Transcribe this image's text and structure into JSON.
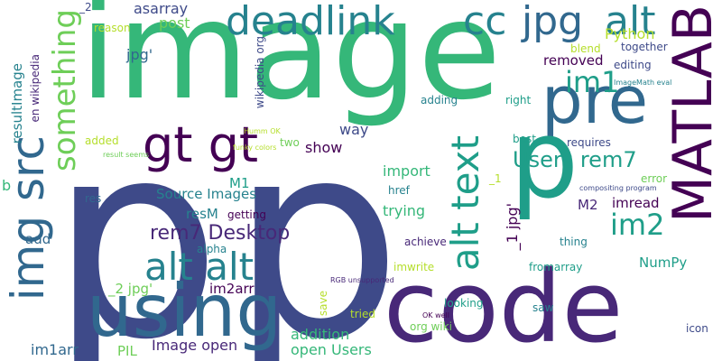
{
  "palette": {
    "purple_dark": "#440154",
    "purple": "#482878",
    "indigo": "#3e4a89",
    "blue": "#31688e",
    "teal": "#26828e",
    "green_teal": "#1f9e89",
    "green": "#35b779",
    "lime": "#6ece58",
    "yellow_green": "#b5de2b"
  },
  "words": [
    {
      "text": "image",
      "color": "#35b779"
    },
    {
      "text": "p",
      "color": "#3e4a89"
    },
    {
      "text": "p",
      "color": "#3e4a89"
    },
    {
      "text": "code",
      "color": "#482878"
    },
    {
      "text": "MATLAB",
      "color": "#440154"
    },
    {
      "text": "using",
      "color": "#31688e"
    },
    {
      "text": "pre",
      "color": "#31688e"
    },
    {
      "text": "p",
      "color": "#1f9e89"
    },
    {
      "text": "deadlink",
      "color": "#26828e"
    },
    {
      "text": "cc",
      "color": "#26828e"
    },
    {
      "text": "jpg",
      "color": "#31688e"
    },
    {
      "text": "alt",
      "color": "#26828e"
    },
    {
      "text": "gt gt",
      "color": "#440154"
    },
    {
      "text": "img src",
      "color": "#31688e"
    },
    {
      "text": "alt alt",
      "color": "#26828e"
    },
    {
      "text": "alt text",
      "color": "#1f9e89"
    },
    {
      "text": "something",
      "color": "#6ece58"
    },
    {
      "text": "im1",
      "color": "#1f9e89"
    },
    {
      "text": "im2",
      "color": "#1f9e89"
    },
    {
      "text": "Users rem7",
      "color": "#1f9e89"
    },
    {
      "text": "rem7 Desktop",
      "color": "#482878"
    },
    {
      "text": "Source Images",
      "color": "#26828e"
    },
    {
      "text": "resultImage",
      "color": "#26828e"
    },
    {
      "text": "en wikipedia",
      "color": "#482878"
    },
    {
      "text": "wikipedia org",
      "color": "#3e4a89"
    },
    {
      "text": "asarray",
      "color": "#3e4a89"
    },
    {
      "text": "post",
      "color": "#6ece58"
    },
    {
      "text": "jpg'",
      "color": "#31688e"
    },
    {
      "text": "reason",
      "color": "#b5de2b"
    },
    {
      "text": "_2",
      "color": "#3e4a89"
    },
    {
      "text": "Python",
      "color": "#b5de2b"
    },
    {
      "text": "blend",
      "color": "#b5de2b"
    },
    {
      "text": "together",
      "color": "#3e4a89"
    },
    {
      "text": "removed",
      "color": "#440154"
    },
    {
      "text": "editing",
      "color": "#3e4a89"
    },
    {
      "text": "ImageMath eval",
      "color": "#26828e"
    },
    {
      "text": "way",
      "color": "#3e4a89"
    },
    {
      "text": "show",
      "color": "#440154"
    },
    {
      "text": "two",
      "color": "#6ece58"
    },
    {
      "text": "Humm OK",
      "color": "#b5de2b"
    },
    {
      "text": "result seems",
      "color": "#6ece58"
    },
    {
      "text": "funky colors",
      "color": "#b5de2b"
    },
    {
      "text": "adding",
      "color": "#26828e"
    },
    {
      "text": "right",
      "color": "#1f9e89"
    },
    {
      "text": "best",
      "color": "#1f9e89"
    },
    {
      "text": "requires",
      "color": "#3e4a89"
    },
    {
      "text": "import",
      "color": "#35b779"
    },
    {
      "text": "added",
      "color": "#b5de2b"
    },
    {
      "text": "_1",
      "color": "#b5de2b"
    },
    {
      "text": "error",
      "color": "#6ece58"
    },
    {
      "text": "compositing program",
      "color": "#3e4a89"
    },
    {
      "text": "b",
      "color": "#35b779"
    },
    {
      "text": "M1",
      "color": "#1f9e89"
    },
    {
      "text": "res",
      "color": "#31688e"
    },
    {
      "text": "resM",
      "color": "#26828e"
    },
    {
      "text": "getting",
      "color": "#440154"
    },
    {
      "text": "trying",
      "color": "#35b779"
    },
    {
      "text": "href",
      "color": "#26828e"
    },
    {
      "text": "M2",
      "color": "#482878"
    },
    {
      "text": "imread",
      "color": "#440154"
    },
    {
      "text": "_1 jpg'",
      "color": "#440154"
    },
    {
      "text": "add",
      "color": "#31688e"
    },
    {
      "text": "alpha",
      "color": "#26828e"
    },
    {
      "text": "achieve",
      "color": "#482878"
    },
    {
      "text": "thing",
      "color": "#26828e"
    },
    {
      "text": "fromarray",
      "color": "#1f9e89"
    },
    {
      "text": "NumPy",
      "color": "#1f9e89"
    },
    {
      "text": "_2 jpg'",
      "color": "#6ece58"
    },
    {
      "text": "im2arr",
      "color": "#440154"
    },
    {
      "text": "imwrite",
      "color": "#b5de2b"
    },
    {
      "text": "RGB unsupported",
      "color": "#482878"
    },
    {
      "text": "save",
      "color": "#b5de2b"
    },
    {
      "text": "looking",
      "color": "#1f9e89"
    },
    {
      "text": "saw",
      "color": "#26828e"
    },
    {
      "text": "icon",
      "color": "#3e4a89"
    },
    {
      "text": "addition",
      "color": "#35b779"
    },
    {
      "text": "open Users",
      "color": "#35b779"
    },
    {
      "text": "tried",
      "color": "#b5de2b"
    },
    {
      "text": "OK well",
      "color": "#440154"
    },
    {
      "text": "org wiki",
      "color": "#6ece58"
    },
    {
      "text": "im1arr",
      "color": "#31688e"
    },
    {
      "text": "PIL",
      "color": "#6ece58"
    },
    {
      "text": "Image open",
      "color": "#482878"
    }
  ]
}
